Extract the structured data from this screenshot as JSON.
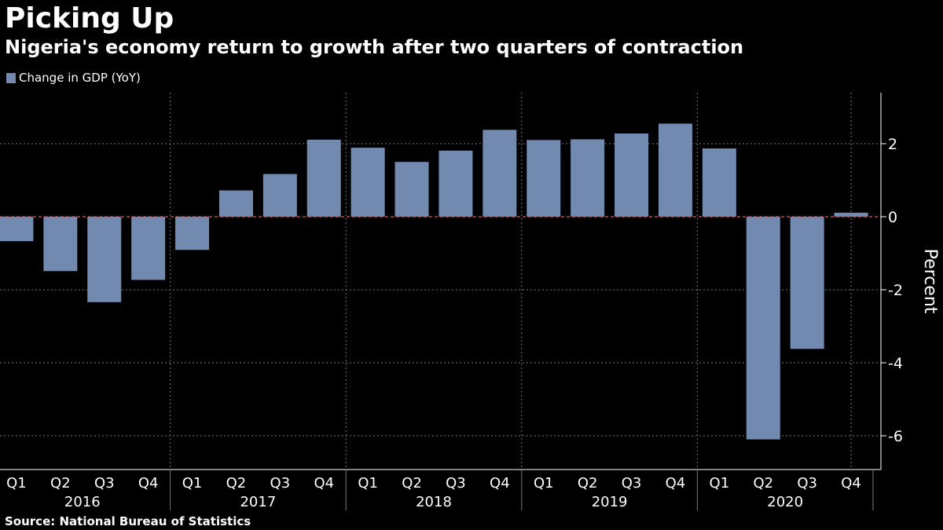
{
  "header": {
    "title": "Picking Up",
    "subtitle": "Nigeria's economy return to growth after two quarters of contraction"
  },
  "colors": {
    "background": "#000000",
    "bar": "#7289b0",
    "zero_line": "#e05050",
    "grid": "#777777",
    "text": "#ffffff"
  },
  "chart_data": {
    "type": "bar",
    "title": "Picking Up",
    "subtitle": "Nigeria's economy return to growth after two quarters of contraction",
    "categories": [
      "Q1",
      "Q2",
      "Q3",
      "Q4",
      "Q1",
      "Q2",
      "Q3",
      "Q4",
      "Q1",
      "Q2",
      "Q3",
      "Q4",
      "Q1",
      "Q2",
      "Q3",
      "Q4",
      "Q1",
      "Q2",
      "Q3",
      "Q4"
    ],
    "years": [
      {
        "label": "2016",
        "quarters": 4
      },
      {
        "label": "2017",
        "quarters": 4
      },
      {
        "label": "2018",
        "quarters": 4
      },
      {
        "label": "2019",
        "quarters": 4
      },
      {
        "label": "2020",
        "quarters": 4
      }
    ],
    "series": [
      {
        "name": "Change in GDP (YoY)",
        "values": [
          -0.67,
          -1.49,
          -2.34,
          -1.73,
          -0.91,
          0.72,
          1.17,
          2.11,
          1.89,
          1.5,
          1.81,
          2.38,
          2.1,
          2.12,
          2.28,
          2.55,
          1.87,
          -6.1,
          -3.62,
          0.11
        ]
      }
    ],
    "ylabel": "Percent",
    "ylim": [
      -7,
      3.4
    ],
    "yticks": [
      2,
      0,
      -2,
      -4,
      -6
    ],
    "ytick_labels": [
      "2",
      "0",
      "-2",
      "-4",
      "-6"
    ],
    "legend": "top-left",
    "grid": true
  },
  "footer": {
    "source": "Source: National Bureau of Statistics"
  }
}
